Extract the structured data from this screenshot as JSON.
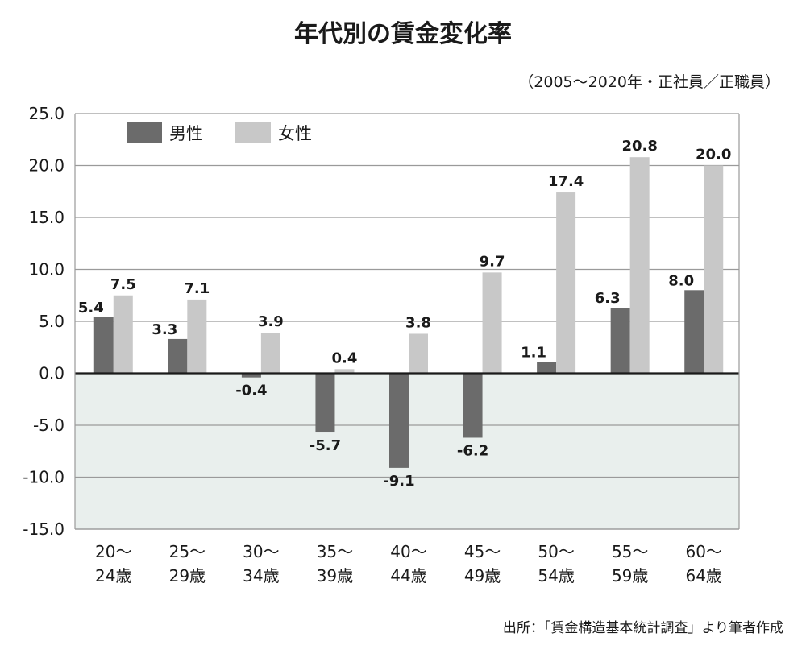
{
  "chart_data": {
    "type": "bar",
    "title": "年代別の賃金変化率",
    "subtitle": "（2005〜2020年・正社員／正職員）",
    "source": "出所：「賃金構造基本統計調査」より筆者作成",
    "categories": [
      [
        "20〜",
        "24歳"
      ],
      [
        "25〜",
        "29歳"
      ],
      [
        "30〜",
        "34歳"
      ],
      [
        "35〜",
        "39歳"
      ],
      [
        "40〜",
        "44歳"
      ],
      [
        "45〜",
        "49歳"
      ],
      [
        "50〜",
        "54歳"
      ],
      [
        "55〜",
        "59歳"
      ],
      [
        "60〜",
        "64歳"
      ]
    ],
    "series": [
      {
        "name": "男性",
        "color": "#6b6b6b",
        "values": [
          5.4,
          3.3,
          -0.4,
          -5.7,
          -9.1,
          -6.2,
          1.1,
          6.3,
          8.0
        ],
        "labels": [
          "5.4",
          "3.3",
          "-0.4",
          "-5.7",
          "-9.1",
          "-6.2",
          "1.1",
          "6.3",
          "8.0"
        ]
      },
      {
        "name": "女性",
        "color": "#c8c8c8",
        "values": [
          7.5,
          7.1,
          3.9,
          0.4,
          3.8,
          9.7,
          17.4,
          20.8,
          20.0
        ],
        "labels": [
          "7.5",
          "7.1",
          "3.9",
          "0.4",
          "3.8",
          "9.7",
          "17.4",
          "20.8",
          "20.0"
        ]
      }
    ],
    "ylim": [
      -15,
      25
    ],
    "yticks": [
      25,
      20,
      15,
      10,
      5,
      0,
      -5,
      -10,
      -15
    ],
    "ytick_labels": [
      "25.0",
      "20.0",
      "15.0",
      "10.0",
      "5.0",
      "0.0",
      "-5.0",
      "-10.0",
      "-15.0"
    ],
    "grid": true,
    "legend_position": "top-left",
    "negative_region_color": "#e9efed",
    "grid_color": "#9a9a9a",
    "zero_line_color": "#1a1a1a"
  }
}
